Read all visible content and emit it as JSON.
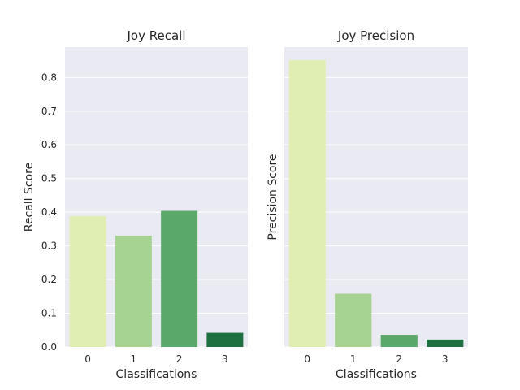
{
  "chart_data": [
    {
      "type": "bar",
      "title": "Joy Recall",
      "xlabel": "Classifications",
      "ylabel": "Recall Score",
      "categories": [
        "0",
        "1",
        "2",
        "3"
      ],
      "values": [
        0.388,
        0.33,
        0.404,
        0.042
      ],
      "colors": [
        "#e0eeb3",
        "#a6d392",
        "#5aa96b",
        "#1f7040"
      ],
      "ylim": [
        0,
        0.89
      ],
      "yticks": [
        0.0,
        0.1,
        0.2,
        0.3,
        0.4,
        0.5,
        0.6,
        0.7,
        0.8
      ],
      "ytick_labels": [
        "0.0",
        "0.1",
        "0.2",
        "0.3",
        "0.4",
        "0.5",
        "0.6",
        "0.7",
        "0.8"
      ],
      "grid": true,
      "show_ytick_labels": true
    },
    {
      "type": "bar",
      "title": "Joy Precision",
      "xlabel": "Classifications",
      "ylabel": "Precision Score",
      "categories": [
        "0",
        "1",
        "2",
        "3"
      ],
      "values": [
        0.851,
        0.158,
        0.036,
        0.022
      ],
      "colors": [
        "#e0eeb3",
        "#a6d392",
        "#5aa96b",
        "#1f7040"
      ],
      "ylim": [
        0,
        0.89
      ],
      "yticks": [
        0.0,
        0.1,
        0.2,
        0.3,
        0.4,
        0.5,
        0.6,
        0.7,
        0.8
      ],
      "ytick_labels": [
        "0.0",
        "0.1",
        "0.2",
        "0.3",
        "0.4",
        "0.5",
        "0.6",
        "0.7",
        "0.8"
      ],
      "grid": true,
      "show_ytick_labels": false
    }
  ]
}
